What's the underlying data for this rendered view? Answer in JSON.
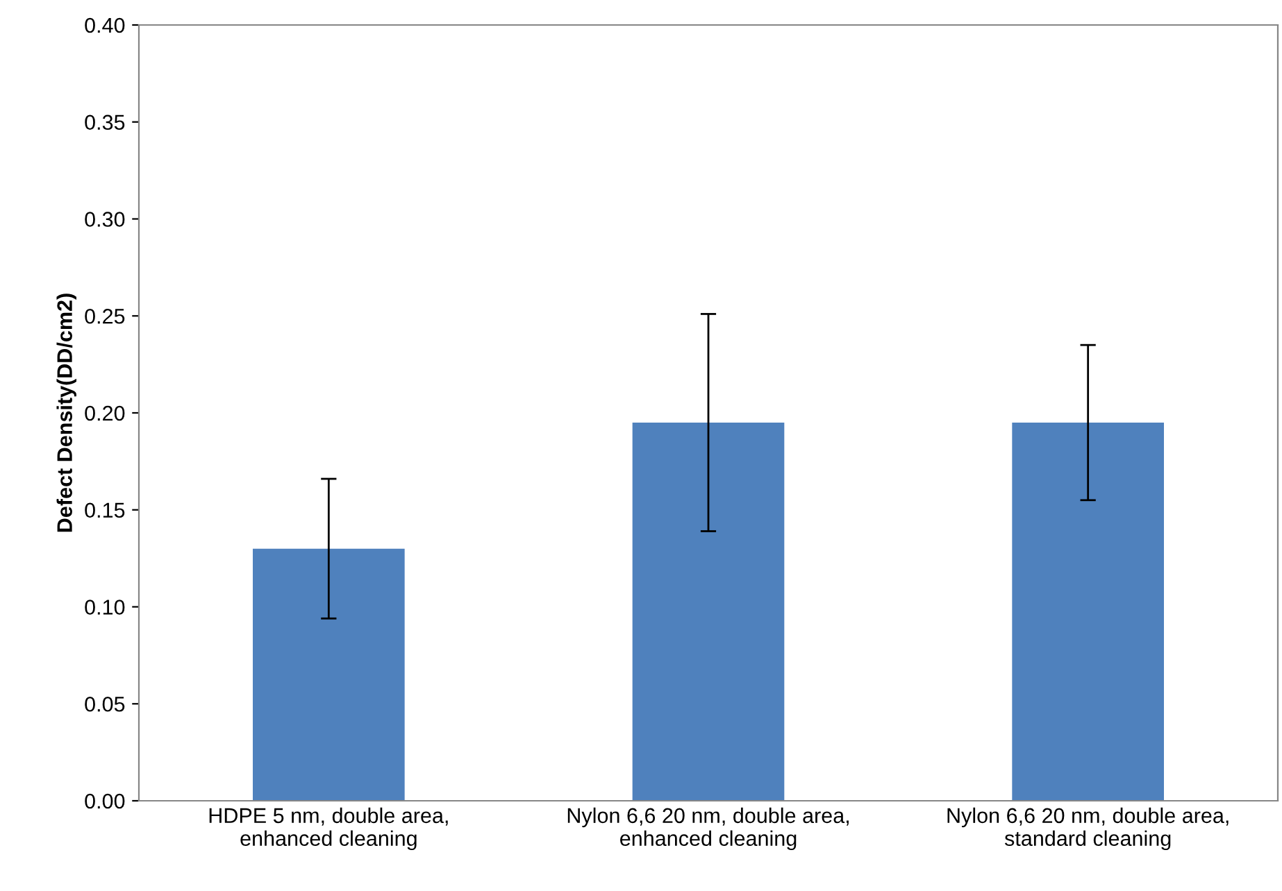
{
  "chart_data": {
    "type": "bar",
    "ylabel": "Defect Density(DD/cm2)",
    "categories": [
      "HDPE 5 nm, double area,\nenhanced cleaning",
      "Nylon 6,6 20 nm, double area,\nenhanced cleaning",
      "Nylon 6,6 20 nm, double area,\nstandard cleaning"
    ],
    "values": [
      0.13,
      0.195,
      0.195
    ],
    "errors": [
      0.036,
      0.056,
      0.04
    ],
    "color": "#4f81bd",
    "ylim": [
      0,
      0.4
    ],
    "yticks": [
      {
        "value": 0,
        "label": "0.00"
      },
      {
        "value": 0.05,
        "label": "0.05"
      },
      {
        "value": 0.1,
        "label": "0.10"
      },
      {
        "value": 0.15,
        "label": "0.15"
      },
      {
        "value": 0.2,
        "label": "0.20"
      },
      {
        "value": 0.25,
        "label": "0.25"
      },
      {
        "value": 0.3,
        "label": "0.30"
      },
      {
        "value": 0.35,
        "label": "0.35"
      },
      {
        "value": 0.4,
        "label": "0.40"
      }
    ],
    "grid": false
  }
}
